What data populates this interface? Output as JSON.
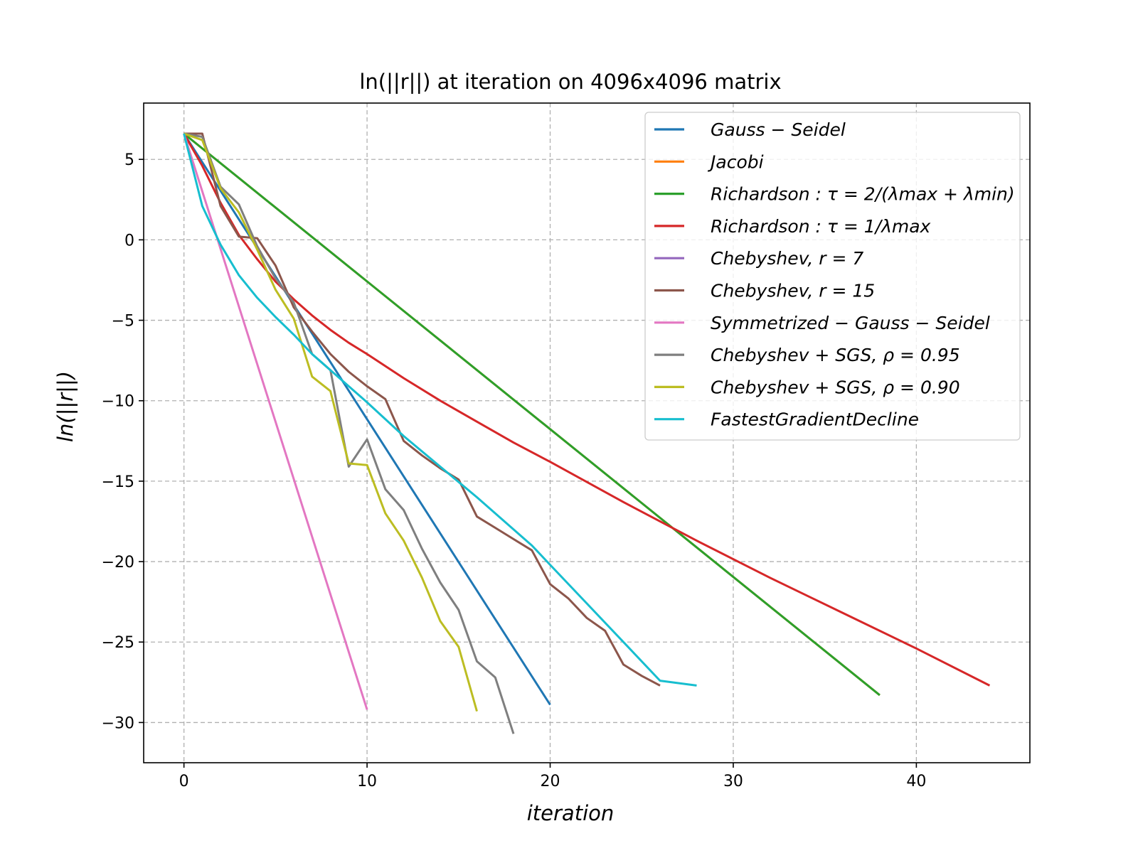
{
  "chart_data": {
    "type": "line",
    "title": "ln(||r||) at iteration on 4096x4096 matrix",
    "xlabel": "iteration",
    "ylabel": "ln(||r||)",
    "xlim": [
      -2.2,
      46.2
    ],
    "ylim": [
      -32.5,
      8.5
    ],
    "xticks": [
      0,
      10,
      20,
      30,
      40
    ],
    "yticks": [
      5,
      0,
      -5,
      -10,
      -15,
      -20,
      -25,
      -30
    ],
    "xtick_labels": [
      "0",
      "10",
      "20",
      "30",
      "40"
    ],
    "ytick_labels": [
      "5",
      "0",
      "−5",
      "−10",
      "−15",
      "−20",
      "−25",
      "−30"
    ],
    "grid": true,
    "legend_position": "upper right",
    "series": [
      {
        "name": "Gauss − Seidel",
        "color": "#1f77b4",
        "x": [
          0,
          20
        ],
        "y": [
          6.6,
          -28.9
        ]
      },
      {
        "name": "Jacobi",
        "color": "#ff7f0e",
        "x": [
          0,
          38
        ],
        "y": [
          6.6,
          -28.3
        ]
      },
      {
        "name": "Richardson : τ = 2/(λmax + λmin)",
        "color": "#2ca02c",
        "x": [
          0,
          38
        ],
        "y": [
          6.6,
          -28.3
        ]
      },
      {
        "name": "Richardson : τ = 1/λmax",
        "color": "#d62728",
        "x": [
          0,
          1,
          2,
          3,
          4,
          5,
          6,
          7,
          8,
          9,
          10,
          12,
          14,
          16,
          18,
          20,
          24,
          28,
          32,
          36,
          40,
          44
        ],
        "y": [
          6.6,
          4.6,
          2.3,
          0.3,
          -1.2,
          -2.6,
          -3.7,
          -4.7,
          -5.6,
          -6.4,
          -7.1,
          -8.6,
          -10.0,
          -11.3,
          -12.6,
          -13.8,
          -16.3,
          -18.7,
          -21.0,
          -23.2,
          -25.4,
          -27.7
        ]
      },
      {
        "name": "Chebyshev, r = 7",
        "color": "#9467bd",
        "x": [],
        "y": []
      },
      {
        "name": "Chebyshev, r = 15",
        "color": "#8c564b",
        "x": [
          0,
          1,
          2,
          3,
          4,
          5,
          6,
          7,
          8,
          9,
          10,
          11,
          12,
          13,
          14,
          15,
          16,
          17,
          18,
          19,
          20,
          21,
          22,
          23,
          24,
          25,
          26
        ],
        "y": [
          6.6,
          6.6,
          2.1,
          0.2,
          0.1,
          -1.6,
          -4.2,
          -5.7,
          -7.1,
          -8.2,
          -9.1,
          -9.9,
          -12.5,
          -13.4,
          -14.2,
          -14.9,
          -17.2,
          -17.9,
          -18.6,
          -19.3,
          -21.4,
          -22.3,
          -23.5,
          -24.3,
          -26.4,
          -27.1,
          -27.7
        ]
      },
      {
        "name": "Symmetrized − Gauss − Seidel",
        "color": "#e377c2",
        "x": [
          0,
          10
        ],
        "y": [
          6.6,
          -29.2
        ]
      },
      {
        "name": "Chebyshev + SGS, ρ = 0.95",
        "color": "#7f7f7f",
        "x": [
          0,
          1,
          2,
          3,
          4,
          5,
          6,
          7,
          8,
          9,
          10,
          11,
          12,
          13,
          14,
          15,
          16,
          17,
          18
        ],
        "y": [
          6.6,
          6.4,
          3.3,
          2.2,
          -0.4,
          -2.4,
          -3.9,
          -7.1,
          -8.1,
          -14.1,
          -12.4,
          -15.5,
          -16.8,
          -19.2,
          -21.3,
          -23.0,
          -26.2,
          -27.2,
          -30.7
        ]
      },
      {
        "name": "Chebyshev + SGS, ρ = 0.90",
        "color": "#bcbd22",
        "x": [
          0,
          1,
          2,
          3,
          4,
          5,
          6,
          7,
          8,
          9,
          10,
          11,
          12,
          13,
          14,
          15,
          16
        ],
        "y": [
          6.6,
          6.2,
          3.2,
          1.7,
          -0.6,
          -3.1,
          -4.9,
          -8.5,
          -9.4,
          -13.9,
          -14.0,
          -17.0,
          -18.7,
          -21.0,
          -23.7,
          -25.3,
          -29.3
        ]
      },
      {
        "name": "FastestGradientDecline",
        "color": "#17becf",
        "x": [
          0,
          1,
          2,
          3,
          4,
          5,
          6,
          7,
          8,
          9,
          10,
          12,
          14,
          16,
          18,
          19,
          20,
          22,
          24,
          26,
          28
        ],
        "y": [
          6.6,
          2.1,
          -0.3,
          -2.2,
          -3.6,
          -4.8,
          -5.9,
          -7.1,
          -8.1,
          -9.1,
          -10.1,
          -12.2,
          -14.1,
          -16.0,
          -18.0,
          -19.0,
          -20.2,
          -22.6,
          -25.0,
          -27.4,
          -27.7
        ]
      }
    ]
  }
}
